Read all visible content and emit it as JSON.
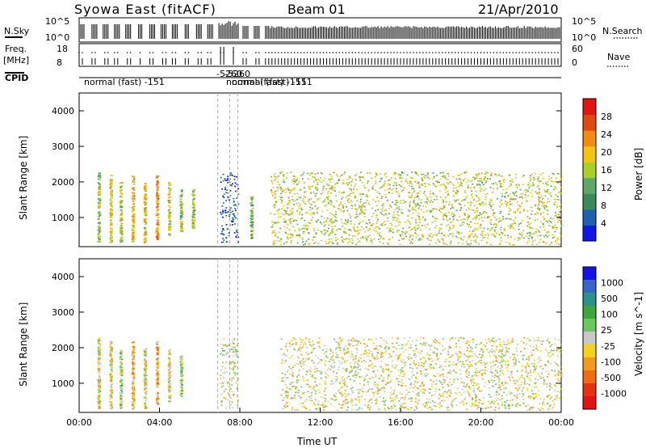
{
  "header": {
    "station": "Syowa East (fitACF)",
    "beam": "Beam 01",
    "date": "21/Apr/2010"
  },
  "status_panels": {
    "nsky_label": "N.Sky",
    "nsky_ticks": [
      "10^5",
      "10^0"
    ],
    "nsearch_label": "N.Search",
    "nsearch_ticks": [
      "10^5",
      "10^0"
    ],
    "freq_label": "Freq.",
    "freq_unit": "[MHz]",
    "freq_ticks": [
      "18",
      "8"
    ],
    "nave_label": "Nave",
    "nave_ticks": [
      "60",
      "0"
    ],
    "cpid_label": "CPID",
    "cpid_labels": [
      "normal (fast) -151",
      "-5260",
      "-5260",
      "normal (fast) -151",
      "normal (fast) -151"
    ]
  },
  "colors": {
    "power_scale": [
      "#1414e6",
      "#2060b0",
      "#3c8a5a",
      "#5ea66a",
      "#a9cf28",
      "#f2c414",
      "#f28c10",
      "#e04a10",
      "#e01414"
    ],
    "velocity_scale": [
      "#1414e6",
      "#3b64c8",
      "#2f8f8a",
      "#3fa63f",
      "#69c85f",
      "#c8c8c8",
      "#f2d21e",
      "#f29a1e",
      "#f06c14",
      "#e63214",
      "#e01414"
    ]
  },
  "chart_data": [
    {
      "type": "heatmap",
      "title": "Power",
      "ylabel": "Slant Range [km]",
      "ylim": [
        180,
        4500
      ],
      "yticks": [
        "1000",
        "2000",
        "3000",
        "4000"
      ],
      "colorbar_label": "Power [dB]",
      "colorbar_ticks": [
        "4",
        "8",
        "12",
        "16",
        "20",
        "24",
        "28"
      ],
      "clim": [
        0,
        30
      ],
      "xlim": [
        "00:00",
        "24:00"
      ],
      "vertical_markers_hours": [
        6.9,
        7.5,
        7.9
      ],
      "echo_regions": [
        {
          "t_start": 0.9,
          "t_end": 1.0,
          "range_min": 300,
          "range_max": 2300,
          "value": 14
        },
        {
          "t_start": 1.5,
          "t_end": 1.6,
          "range_min": 300,
          "range_max": 2200,
          "value": 18
        },
        {
          "t_start": 2.0,
          "t_end": 2.1,
          "range_min": 300,
          "range_max": 2000,
          "value": 16
        },
        {
          "t_start": 2.6,
          "t_end": 2.7,
          "range_min": 300,
          "range_max": 2200,
          "value": 20
        },
        {
          "t_start": 3.2,
          "t_end": 3.3,
          "range_min": 300,
          "range_max": 2000,
          "value": 18
        },
        {
          "t_start": 3.8,
          "t_end": 3.9,
          "range_min": 400,
          "range_max": 2200,
          "value": 22
        },
        {
          "t_start": 4.4,
          "t_end": 4.5,
          "range_min": 500,
          "range_max": 2000,
          "value": 16
        },
        {
          "t_start": 5.0,
          "t_end": 5.1,
          "range_min": 600,
          "range_max": 1800,
          "value": 14
        },
        {
          "t_start": 5.6,
          "t_end": 5.7,
          "range_min": 700,
          "range_max": 1800,
          "value": 14
        },
        {
          "t_start": 7.0,
          "t_end": 7.9,
          "range_min": 300,
          "range_max": 2300,
          "value": 4
        },
        {
          "t_start": 8.5,
          "t_end": 8.6,
          "range_min": 400,
          "range_max": 1600,
          "value": 12
        },
        {
          "t_start": 9.5,
          "t_end": 24.0,
          "range_min": 250,
          "range_max": 2300,
          "value": 16
        }
      ]
    },
    {
      "type": "heatmap",
      "title": "Velocity",
      "ylabel": "Slant Range [km]",
      "ylim": [
        180,
        4500
      ],
      "yticks": [
        "1000",
        "2000",
        "3000",
        "4000"
      ],
      "xticks": [
        "00:00",
        "04:00",
        "08:00",
        "12:00",
        "16:00",
        "20:00",
        "00:00"
      ],
      "xlabel": "Time UT",
      "colorbar_label": "Velocity [m s^-1]",
      "colorbar_ticks": [
        "1000",
        "500",
        "100",
        "25",
        "-25",
        "-100",
        "-500",
        "-1000"
      ],
      "clim": [
        -1000,
        1000
      ],
      "xlim": [
        "00:00",
        "24:00"
      ],
      "vertical_markers_hours": [
        6.9,
        7.5,
        7.9
      ],
      "echo_regions": [
        {
          "t_start": 0.9,
          "t_end": 1.0,
          "range_min": 300,
          "range_max": 2300,
          "value": -100
        },
        {
          "t_start": 1.5,
          "t_end": 1.6,
          "range_min": 300,
          "range_max": 2200,
          "value": -100
        },
        {
          "t_start": 2.0,
          "t_end": 2.1,
          "range_min": 300,
          "range_max": 2000,
          "value": 100
        },
        {
          "t_start": 2.6,
          "t_end": 2.7,
          "range_min": 300,
          "range_max": 2200,
          "value": -300
        },
        {
          "t_start": 3.2,
          "t_end": 3.3,
          "range_min": 300,
          "range_max": 2000,
          "value": -100
        },
        {
          "t_start": 3.8,
          "t_end": 3.9,
          "range_min": 400,
          "range_max": 2200,
          "value": -300
        },
        {
          "t_start": 4.4,
          "t_end": 4.5,
          "range_min": 500,
          "range_max": 2000,
          "value": -100
        },
        {
          "t_start": 5.0,
          "t_end": 5.1,
          "range_min": 600,
          "range_max": 1800,
          "value": 100
        },
        {
          "t_start": 7.0,
          "t_end": 7.9,
          "range_min": 300,
          "range_max": 2300,
          "value": 0
        },
        {
          "t_start": 10.0,
          "t_end": 24.0,
          "range_min": 250,
          "range_max": 2300,
          "value": -100
        }
      ]
    }
  ]
}
